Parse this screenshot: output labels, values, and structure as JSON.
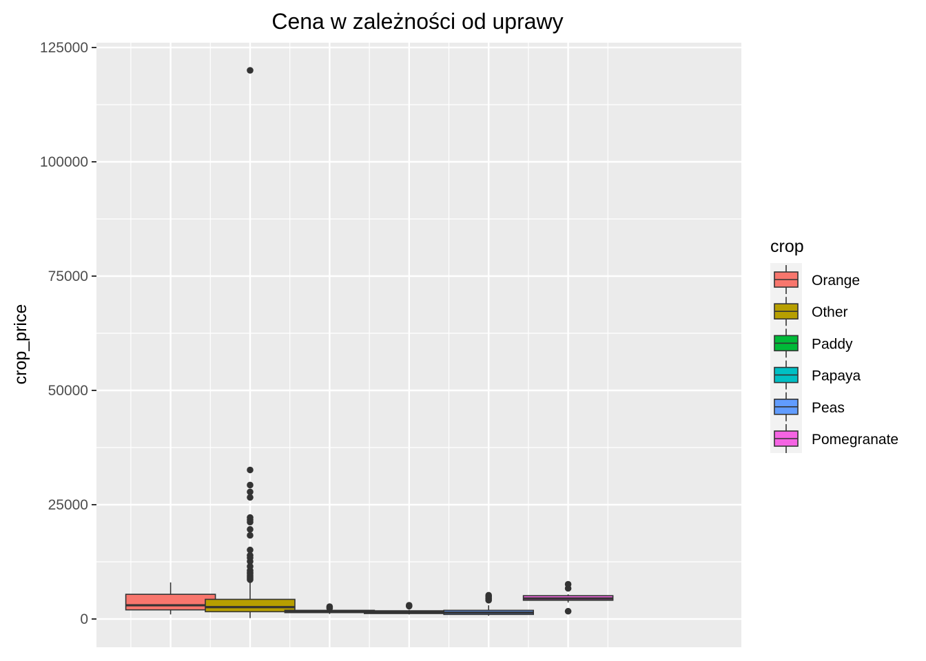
{
  "chart_data": {
    "type": "boxplot",
    "title": "Cena w zależności od uprawy",
    "xlabel": "",
    "ylabel": "crop_price",
    "ylim": [
      -5000,
      125700
    ],
    "yticks": [
      0,
      25000,
      50000,
      75000,
      100000,
      125000
    ],
    "ytick_labels": [
      "0",
      "25000",
      "50000",
      "75000",
      "100000",
      "125000"
    ],
    "grid": true,
    "legend": {
      "title": "crop",
      "position": "right"
    },
    "series": [
      {
        "name": "Orange",
        "color": "#F8766D",
        "whisker_low": 1000,
        "q1": 2000,
        "median": 3000,
        "q3": 5400,
        "whisker_high": 8000,
        "outliers": []
      },
      {
        "name": "Other",
        "color": "#B79F00",
        "whisker_low": 200,
        "q1": 1600,
        "median": 2600,
        "q3": 4300,
        "whisker_high": 8200,
        "outliers": [
          120000,
          32600,
          29300,
          27800,
          26600,
          22200,
          21700,
          21200,
          19600,
          18300,
          15100,
          13900,
          13400,
          12600,
          11500,
          10600,
          10200,
          9900,
          9500,
          9200,
          8900,
          8600
        ]
      },
      {
        "name": "Paddy",
        "color": "#00BA38",
        "whisker_low": 1100,
        "q1": 1400,
        "median": 1700,
        "q3": 1900,
        "whisker_high": 2100,
        "outliers": [
          2400,
          2700
        ]
      },
      {
        "name": "Papaya",
        "color": "#00BFC4",
        "whisker_low": 1000,
        "q1": 1200,
        "median": 1500,
        "q3": 1800,
        "whisker_high": 2000,
        "outliers": [
          2800,
          3000
        ]
      },
      {
        "name": "Peas",
        "color": "#619CFF",
        "whisker_low": 700,
        "q1": 1000,
        "median": 1400,
        "q3": 1900,
        "whisker_high": 3000,
        "outliers": [
          4100,
          4500,
          4900,
          5200
        ]
      },
      {
        "name": "Pomegranate",
        "color": "#F564E3",
        "whisker_low": 3600,
        "q1": 4100,
        "median": 4500,
        "q3": 5100,
        "whisker_high": 5400,
        "outliers": [
          1700,
          6700,
          7600
        ]
      }
    ]
  }
}
